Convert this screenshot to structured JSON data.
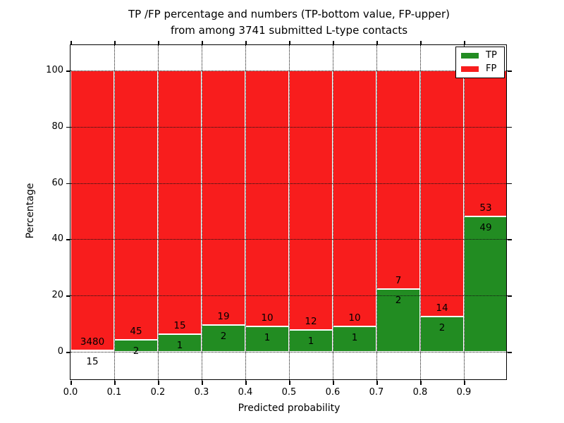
{
  "figure": {
    "title_line1": "TP /FP percentage and numbers (TP-bottom value, FP-upper)",
    "title_line2": "from among 3741 submitted L-type contacts"
  },
  "chart_data": {
    "type": "bar",
    "subtype": "stacked-percentage",
    "title": "TP /FP percentage and numbers (TP-bottom value, FP-upper)\nfrom among 3741 submitted L-type contacts",
    "xlabel": "Predicted probability",
    "ylabel": "Percentage",
    "total_submitted": 3741,
    "xlim": [
      0.0,
      1.0
    ],
    "ylim": [
      -11,
      109
    ],
    "grid": {
      "visible": true,
      "style": "dotted",
      "color": "#000000"
    },
    "x_tick_labels": [
      "0.0",
      "0.1",
      "0.2",
      "0.3",
      "0.4",
      "0.5",
      "0.6",
      "0.7",
      "0.8",
      "0.9"
    ],
    "y_tick_values": [
      0,
      20,
      40,
      60,
      80,
      100
    ],
    "y_tick_labels": [
      "0",
      "20",
      "40",
      "60",
      "80",
      "100"
    ],
    "categories": [
      "0.0-0.1",
      "0.1-0.2",
      "0.2-0.3",
      "0.3-0.4",
      "0.4-0.5",
      "0.5-0.6",
      "0.6-0.7",
      "0.7-0.8",
      "0.8-0.9",
      "0.9-1.0"
    ],
    "series": [
      {
        "name": "TP",
        "color": "#228c22",
        "counts": [
          15,
          2,
          1,
          2,
          1,
          1,
          1,
          2,
          2,
          49
        ]
      },
      {
        "name": "FP",
        "color": "#f81d1d",
        "counts": [
          3480,
          45,
          15,
          19,
          10,
          12,
          10,
          7,
          14,
          53
        ]
      }
    ],
    "tp_percent_of_bin": [
      0.43,
      4.26,
      6.25,
      9.52,
      9.09,
      7.69,
      9.09,
      22.22,
      12.5,
      48.04
    ],
    "fp_percent_of_bin": [
      99.57,
      95.74,
      93.75,
      90.48,
      90.91,
      92.31,
      90.91,
      77.78,
      87.5,
      51.96
    ],
    "legend": {
      "position": "upper-right",
      "entries": [
        {
          "label": "TP",
          "color": "#228c22"
        },
        {
          "label": "FP",
          "color": "#f81d1d"
        }
      ]
    }
  }
}
